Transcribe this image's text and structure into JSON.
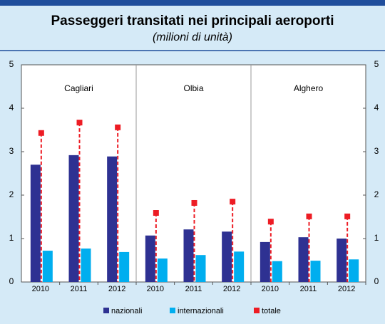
{
  "chart_data": {
    "type": "bar",
    "title": "Passeggeri transitati nei principali aeroporti",
    "subtitle": "(milioni di unità)",
    "groups": [
      "Cagliari",
      "Olbia",
      "Alghero"
    ],
    "categories": [
      "2010",
      "2011",
      "2012",
      "2010",
      "2011",
      "2012",
      "2010",
      "2011",
      "2012"
    ],
    "series": [
      {
        "name": "nazionali",
        "color": "#2e3192",
        "values": [
          2.7,
          2.92,
          2.89,
          1.07,
          1.21,
          1.16,
          0.92,
          1.03,
          1.0
        ]
      },
      {
        "name": "internazionali",
        "color": "#00aeef",
        "values": [
          0.72,
          0.77,
          0.69,
          0.54,
          0.62,
          0.7,
          0.48,
          0.49,
          0.52
        ]
      },
      {
        "name": "totale",
        "color": "#ed1c24",
        "values": [
          3.43,
          3.67,
          3.56,
          1.59,
          1.82,
          1.85,
          1.39,
          1.51,
          1.51
        ]
      }
    ],
    "ylim": [
      0,
      5
    ],
    "yticks": [
      0,
      1,
      2,
      3,
      4,
      5
    ],
    "y2lim": [
      0,
      5
    ],
    "y2ticks": [
      0,
      1,
      2,
      3,
      4,
      5
    ]
  }
}
